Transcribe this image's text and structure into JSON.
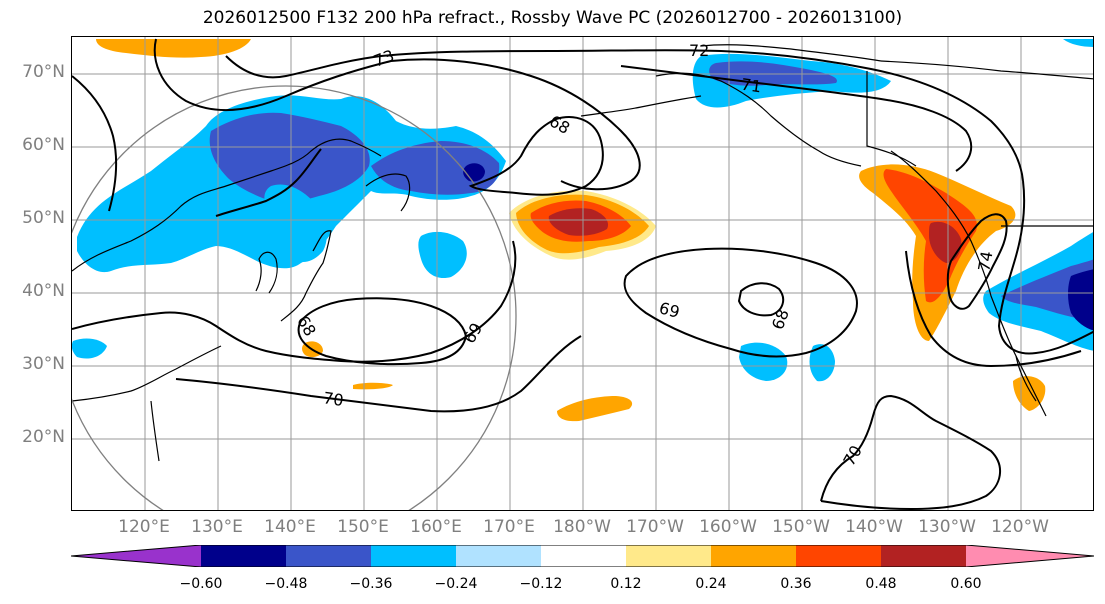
{
  "title": "2026012500 F132 200 hPa refract., Rossby Wave PC (2026012700 - 2026013100)",
  "latitude_labels": [
    "70°N",
    "60°N",
    "50°N",
    "40°N",
    "30°N",
    "20°N"
  ],
  "longitude_labels": [
    "120°E",
    "130°E",
    "140°E",
    "150°E",
    "160°E",
    "170°E",
    "180°W",
    "170°W",
    "160°W",
    "150°W",
    "140°W",
    "130°W",
    "120°W"
  ],
  "contour_labels": [
    "73",
    "72",
    "71",
    "68",
    "69",
    "68",
    "68",
    "69",
    "70",
    "70",
    "74"
  ],
  "colorbar": {
    "ticks": [
      "−0.60",
      "−0.48",
      "−0.36",
      "−0.24",
      "−0.12",
      "0.12",
      "0.24",
      "0.36",
      "0.48",
      "0.60"
    ],
    "colors": [
      "#9932cc",
      "#00008b",
      "#3a55c9",
      "#00bfff",
      "#b0e2ff",
      "#ffffff",
      "#ffe98a",
      "#ffa500",
      "#ff4500",
      "#b22222",
      "#ff8cb0"
    ]
  },
  "colors": {
    "strong_negative": "#00008b",
    "negative": "#3a55c9",
    "weak_negative": "#00bfff",
    "faint_negative": "#b0e2ff",
    "weak_positive": "#ffe98a",
    "positive": "#ffa500",
    "strong_positive": "#ff4500",
    "very_strong_positive": "#b22222"
  }
}
